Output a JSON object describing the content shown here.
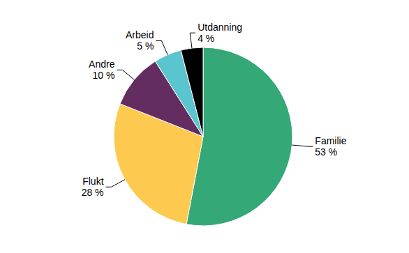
{
  "chart_data": {
    "type": "pie",
    "categories": [
      "Familie",
      "Flukt",
      "Andre",
      "Arbeid",
      "Utdanning"
    ],
    "values": [
      53,
      28,
      10,
      5,
      4
    ],
    "value_labels": [
      "53 %",
      "28 %",
      "10 %",
      "5 %",
      "4 %"
    ],
    "colors": [
      "#34a877",
      "#fdc94f",
      "#632d61",
      "#5bc5cf",
      "#000000"
    ],
    "data_labels": true
  }
}
